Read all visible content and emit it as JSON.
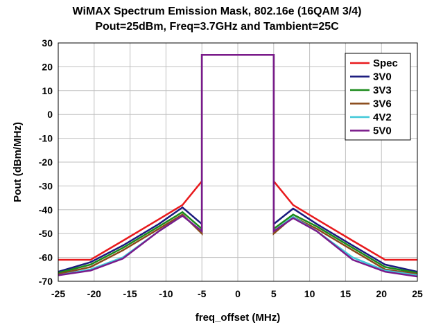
{
  "chart_data": {
    "type": "line",
    "title": "WiMAX Spectrum Emission Mask, 802.16e (16QAM 3/4)",
    "subtitle": "Pout=25dBm, Freq=3.7GHz and Tambient=25C",
    "xlabel": "freq_offset (MHz)",
    "ylabel": "Pout (dBm/MHz)",
    "xlim": [
      -25,
      25
    ],
    "ylim": [
      -70,
      30
    ],
    "xticks": [
      -25,
      -20,
      -15,
      -10,
      -5,
      0,
      5,
      10,
      15,
      20,
      25
    ],
    "yticks": [
      30,
      20,
      10,
      0,
      -10,
      -20,
      -30,
      -40,
      -50,
      -60,
      -70
    ],
    "xtick_labels": [
      "-25",
      "-20",
      "-15",
      "-10",
      "-5",
      "0",
      "5",
      "10",
      "15",
      "20",
      "25"
    ],
    "ytick_labels": [
      "30",
      "20",
      "10",
      "0",
      "-10",
      "-20",
      "-30",
      "-40",
      "-50",
      "-60",
      "-70"
    ],
    "grid": true,
    "legend_position": "top-right",
    "series": [
      {
        "name": "Spec",
        "color": "#e8191c",
        "x": [
          -25,
          -20.5,
          -16,
          -11,
          -7.7,
          -5,
          -5,
          5,
          5,
          7.7,
          11,
          16,
          20.5,
          25
        ],
        "y": [
          -61,
          -61,
          -53,
          -44,
          -38,
          -28,
          25,
          25,
          -28,
          -38,
          -44,
          -53,
          -61,
          -61
        ]
      },
      {
        "name": "3V0",
        "color": "#1a1a7e",
        "x": [
          -25,
          -20.5,
          -16,
          -11,
          -7.7,
          -5,
          -5,
          5,
          5,
          7.7,
          11,
          16,
          20.5,
          25
        ],
        "y": [
          -66,
          -62,
          -55,
          -46,
          -39,
          -46,
          25,
          25,
          -46,
          -39.5,
          -46,
          -55,
          -63,
          -66
        ]
      },
      {
        "name": "3V3",
        "color": "#1a8a1a",
        "x": [
          -25,
          -20.5,
          -16,
          -11,
          -7.7,
          -5,
          -5,
          5,
          5,
          7.7,
          11,
          16,
          20.5,
          25
        ],
        "y": [
          -66.5,
          -63,
          -56,
          -47,
          -41,
          -48,
          25,
          25,
          -48,
          -42,
          -47,
          -56,
          -64,
          -66.5
        ]
      },
      {
        "name": "3V6",
        "color": "#8a4a1a",
        "x": [
          -25,
          -20.5,
          -16,
          -11,
          -7.7,
          -5,
          -5,
          5,
          5,
          7.7,
          11,
          16,
          20.5,
          25
        ],
        "y": [
          -67,
          -64,
          -57,
          -48,
          -42,
          -50,
          25,
          25,
          -50,
          -43,
          -48,
          -57,
          -65,
          -67
        ]
      },
      {
        "name": "4V2",
        "color": "#3fc8d8",
        "x": [
          -25,
          -20.5,
          -16,
          -11,
          -7.7,
          -5,
          -5,
          5,
          5,
          7.7,
          11,
          16,
          20.5,
          25
        ],
        "y": [
          -67.5,
          -65,
          -60,
          -49,
          -42.5,
          -49,
          25,
          25,
          -49,
          -43,
          -49,
          -60,
          -65.5,
          -67.5
        ]
      },
      {
        "name": "5V0",
        "color": "#7a1a8a",
        "x": [
          -25,
          -20.5,
          -16,
          -11,
          -7.7,
          -5,
          -5,
          5,
          5,
          7.7,
          11,
          16,
          20.5,
          25
        ],
        "y": [
          -67.5,
          -65.5,
          -60.5,
          -49,
          -42.5,
          -49,
          25,
          25,
          -49,
          -43.5,
          -49,
          -61,
          -66,
          -68
        ]
      }
    ]
  }
}
